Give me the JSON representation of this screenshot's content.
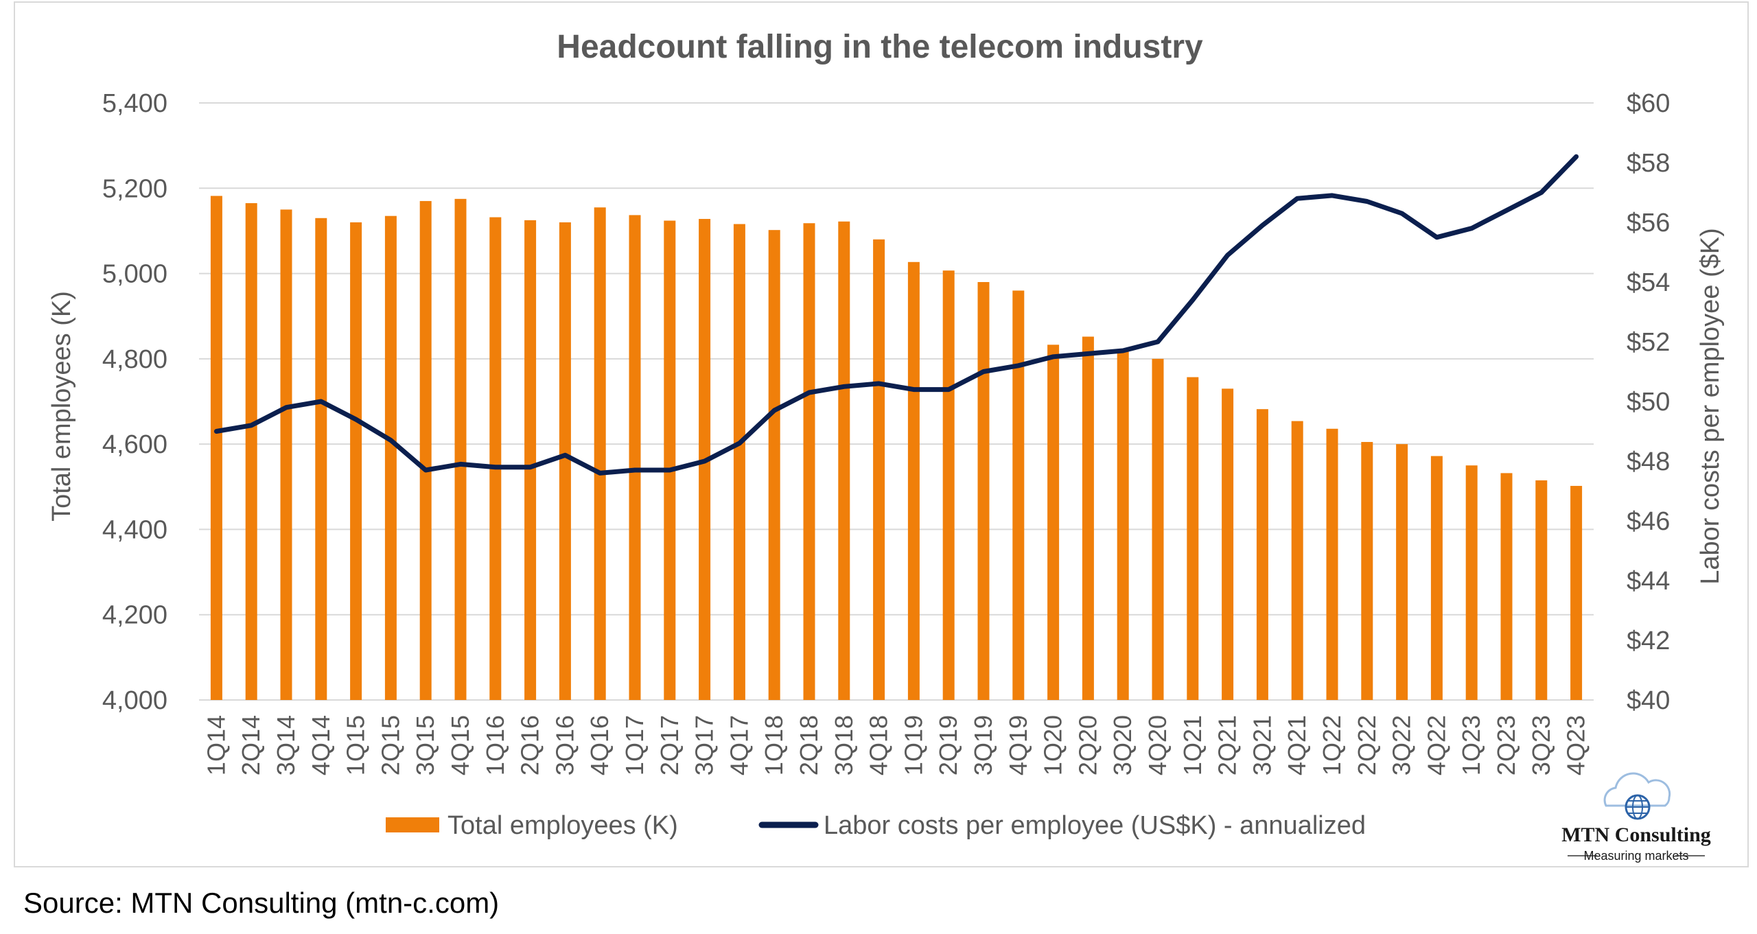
{
  "chart_data": {
    "type": "bar",
    "title": "Headcount falling in the telecom industry",
    "categories": [
      "1Q14",
      "2Q14",
      "3Q14",
      "4Q14",
      "1Q15",
      "2Q15",
      "3Q15",
      "4Q15",
      "1Q16",
      "2Q16",
      "3Q16",
      "4Q16",
      "1Q17",
      "2Q17",
      "3Q17",
      "4Q17",
      "1Q18",
      "2Q18",
      "3Q18",
      "4Q18",
      "1Q19",
      "2Q19",
      "3Q19",
      "4Q19",
      "1Q20",
      "2Q20",
      "3Q20",
      "4Q20",
      "1Q21",
      "2Q21",
      "3Q21",
      "4Q21",
      "1Q22",
      "2Q22",
      "3Q22",
      "4Q22",
      "1Q23",
      "2Q23",
      "3Q23",
      "4Q23"
    ],
    "series": [
      {
        "name": "Total employees (K)",
        "type": "bar",
        "axis": "left",
        "color": "#f07f0a",
        "values": [
          5182,
          5165,
          5150,
          5130,
          5120,
          5135,
          5170,
          5175,
          5132,
          5125,
          5120,
          5155,
          5137,
          5124,
          5128,
          5116,
          5102,
          5118,
          5122,
          5080,
          5027,
          5007,
          4980,
          4960,
          4833,
          4852,
          4818,
          4800,
          4757,
          4730,
          4682,
          4654,
          4636,
          4605,
          4600,
          4572,
          4550,
          4532,
          4515,
          4502
        ]
      },
      {
        "name": "Labor costs per employee (US$K) - annualized",
        "type": "line",
        "axis": "right",
        "color": "#0b1f4e",
        "values": [
          49.0,
          49.2,
          49.8,
          50.0,
          49.4,
          48.7,
          47.7,
          47.9,
          47.8,
          47.8,
          48.2,
          47.6,
          47.7,
          47.7,
          48.0,
          48.6,
          49.7,
          50.3,
          50.5,
          50.6,
          50.4,
          50.4,
          51.0,
          51.2,
          51.5,
          51.6,
          51.7,
          52.0,
          53.4,
          54.9,
          55.9,
          56.8,
          56.9,
          56.7,
          56.3,
          55.5,
          55.8,
          56.4,
          57.0,
          58.2
        ]
      }
    ],
    "y_left": {
      "label": "Total employees (K)",
      "range": [
        4000,
        5400
      ],
      "ticks": [
        "4,000",
        "4,200",
        "4,400",
        "4,600",
        "4,800",
        "5,000",
        "5,200",
        "5,400"
      ]
    },
    "y_right": {
      "label": "Labor costs per employee ($K)",
      "range": [
        40,
        60
      ],
      "ticks": [
        "$40",
        "$42",
        "$44",
        "$46",
        "$48",
        "$50",
        "$52",
        "$54",
        "$56",
        "$58",
        "$60"
      ]
    },
    "grid": "horizontal",
    "legend": "bottom"
  },
  "logo": {
    "name": "MTN Consulting",
    "tagline": "Measuring markets"
  },
  "source": "Source: MTN Consulting (mtn-c.com)",
  "colors": {
    "bar": "#f07f0a",
    "line": "#0b1f4e",
    "grid": "#d9d9d9",
    "text": "#595959"
  }
}
